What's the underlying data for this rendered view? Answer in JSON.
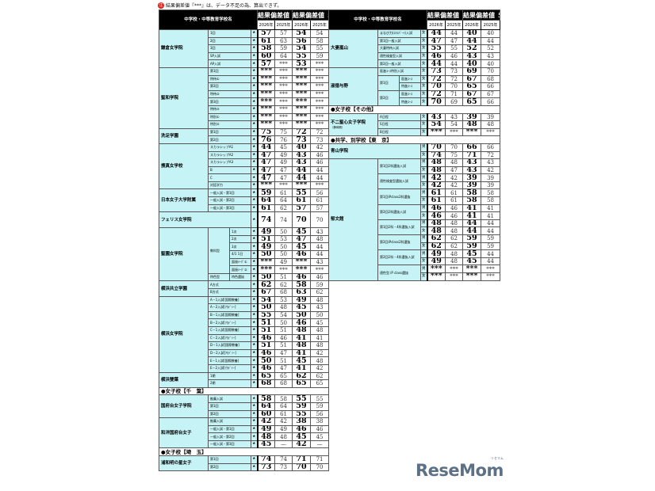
{
  "note": {
    "mark": "注",
    "text": "結果偏差値『***』は、データ不足の為、算出できず。"
  },
  "header": {
    "school_col": "中学校・中等教育学校名",
    "col80": "結果偏差値 ８０％",
    "col50": "結果偏差値 ５０％",
    "years": [
      "2026年",
      "2025年",
      "2026年",
      "2025年"
    ]
  },
  "left": [
    {
      "name": "鎌倉女学院",
      "rows": [
        {
          "sub": [
            "1回"
          ],
          "g": "★",
          "v": [
            "57",
            "57",
            "54",
            "54"
          ]
        },
        {
          "sub": [
            "2回"
          ],
          "g": "★",
          "v": [
            "61",
            "63",
            "56",
            "58"
          ]
        },
        {
          "sub": [
            "3回"
          ],
          "g": "★",
          "v": [
            "58",
            "59",
            "54",
            "55"
          ]
        },
        {
          "sub": [
            "SP入試"
          ],
          "g": "★",
          "v": [
            "60",
            "64",
            "55",
            "59"
          ]
        },
        {
          "sub": [
            "AP入試"
          ],
          "g": "★",
          "v": [
            "57",
            "***",
            "53",
            "***"
          ]
        }
      ]
    },
    {
      "name": "聖和学院",
      "rows": [
        {
          "sub": [
            "第1回"
          ],
          "g": "★",
          "v": [
            "***",
            "***",
            "***",
            "***"
          ]
        },
        {
          "sub": [
            "特待①"
          ],
          "g": "★",
          "v": [
            "***",
            "***",
            "***",
            "***"
          ]
        },
        {
          "sub": [
            "第2回"
          ],
          "g": "★",
          "v": [
            "***",
            "***",
            "***",
            "***"
          ]
        },
        {
          "sub": [
            "特待②"
          ],
          "g": "★",
          "v": [
            "***",
            "***",
            "***",
            "***"
          ]
        },
        {
          "sub": [
            "第3回"
          ],
          "g": "★",
          "v": [
            "***",
            "***",
            "***",
            "***"
          ]
        },
        {
          "sub": [
            "特待③"
          ],
          "g": "★",
          "v": [
            "***",
            "***",
            "***",
            "***"
          ]
        },
        {
          "sub": [
            "特別①"
          ],
          "g": "★",
          "v": [
            "***",
            "***",
            "***",
            "***"
          ]
        },
        {
          "sub": [
            "特別②"
          ],
          "g": "★",
          "v": [
            "***",
            "***",
            "***",
            "***"
          ]
        }
      ]
    },
    {
      "name": "洗足学園",
      "rows": [
        {
          "sub": [
            "第1回"
          ],
          "g": "★",
          "v": [
            "75",
            "75",
            "72",
            "72"
          ]
        },
        {
          "sub": [
            "第2回"
          ],
          "g": "★",
          "v": [
            "76",
            "76",
            "73",
            "73"
          ]
        }
      ]
    },
    {
      "name": "捜真女学校",
      "rows": [
        {
          "sub": [
            "スカラシップA1"
          ],
          "g": "★",
          "v": [
            "44",
            "45",
            "40",
            "42"
          ]
        },
        {
          "sub": [
            "スカラシップA2"
          ],
          "g": "★",
          "v": [
            "47",
            "49",
            "43",
            "46"
          ]
        },
        {
          "sub": [
            "スカラシップA3"
          ],
          "g": "★",
          "v": [
            "47",
            "49",
            "43",
            "46"
          ]
        },
        {
          "sub": [
            "B"
          ],
          "g": "★",
          "v": [
            "47",
            "47",
            "44",
            "44"
          ]
        },
        {
          "sub": [
            "C"
          ],
          "g": "★",
          "v": [
            "47",
            "47",
            "44",
            "44"
          ]
        },
        {
          "sub": [
            "対話学力"
          ],
          "g": "★",
          "v": [
            "***",
            "***",
            "***",
            "***"
          ]
        }
      ]
    },
    {
      "name": "日本女子大学附属",
      "rows": [
        {
          "sub": [
            "一般入試・第1回"
          ],
          "g": "★",
          "v": [
            "59",
            "61",
            "55",
            "56"
          ]
        },
        {
          "sub": [
            "一般入試・第2回"
          ],
          "g": "★",
          "v": [
            "64",
            "64",
            "61",
            "61"
          ]
        },
        {
          "sub": [
            "一般入試・第3回"
          ],
          "g": "★",
          "v": [
            "61",
            "62",
            "57",
            "57"
          ]
        }
      ]
    },
    {
      "name": "フェリス女学院",
      "tall": true,
      "rows": [
        {
          "sub": [],
          "g": "★",
          "v": [
            "74",
            "74",
            "70",
            "70"
          ]
        }
      ]
    },
    {
      "name": "聖園女学院",
      "rows": [
        {
          "sub": [
            "教科型",
            "1次"
          ],
          "g": "★",
          "v": [
            "49",
            "50",
            "45",
            "43"
          ]
        },
        {
          "sub": [
            "教科型",
            "2次"
          ],
          "g": "★",
          "v": [
            "51",
            "53",
            "47",
            "48"
          ]
        },
        {
          "sub": [
            "教科型",
            "3次"
          ],
          "g": "★",
          "v": [
            "49",
            "50",
            "45",
            "44"
          ]
        },
        {
          "sub": [
            "教科型",
            "4/1 1日"
          ],
          "g": "★",
          "v": [
            "50",
            "50",
            "46",
            "44"
          ]
        },
        {
          "sub": [
            "教科型",
            "面接ﾒｰｸﾞ①"
          ],
          "g": "★",
          "v": [
            "***",
            "49",
            "***",
            "43"
          ]
        },
        {
          "sub": [
            "教科型",
            "面接ﾒｰｸﾞ②"
          ],
          "g": "★",
          "v": [
            "***",
            "***",
            "***",
            "***"
          ]
        },
        {
          "sub": [
            "特色型",
            "特色選抜"
          ],
          "g": "★",
          "v": [
            "50",
            "51",
            "46",
            "46"
          ]
        }
      ]
    },
    {
      "name": "横浜共立学園",
      "rows": [
        {
          "sub": [
            "A方式"
          ],
          "g": "★",
          "v": [
            "62",
            "62",
            "58",
            "59"
          ]
        },
        {
          "sub": [
            "B方式"
          ],
          "g": "★",
          "v": [
            "67",
            "68",
            "63",
            "62"
          ]
        }
      ]
    },
    {
      "name": "横浜女学院",
      "rows": [
        {
          "sub": [
            "A－1入試[国際教養]"
          ],
          "g": "★",
          "v": [
            "54",
            "53",
            "49",
            "48"
          ]
        },
        {
          "sub": [
            "A－2入試[ｱｶﾃﾞﾐｰ]"
          ],
          "g": "★",
          "v": [
            "50",
            "48",
            "45",
            "43"
          ]
        },
        {
          "sub": [
            "B－1入試[国際教養]"
          ],
          "g": "★",
          "v": [
            "55",
            "54",
            "50",
            "50"
          ]
        },
        {
          "sub": [
            "B－2入試[ｱｶﾃﾞﾐｰ]"
          ],
          "g": "★",
          "v": [
            "51",
            "50",
            "46",
            "45"
          ]
        },
        {
          "sub": [
            "C－1入試[国際教養]"
          ],
          "g": "★",
          "v": [
            "51",
            "51",
            "48",
            "48"
          ]
        },
        {
          "sub": [
            "C－2入試[ｱｶﾃﾞﾐｰ]"
          ],
          "g": "★",
          "v": [
            "46",
            "46",
            "41",
            "41"
          ]
        },
        {
          "sub": [
            "D－1入試[国際教養]"
          ],
          "g": "★",
          "v": [
            "51",
            "51",
            "48",
            "48"
          ]
        },
        {
          "sub": [
            "D－2入試[ｱｶﾃﾞﾐｰ]"
          ],
          "g": "★",
          "v": [
            "46",
            "47",
            "41",
            "42"
          ]
        },
        {
          "sub": [
            "E－1入試[国際教養]"
          ],
          "g": "★",
          "v": [
            "50",
            "51",
            "45",
            "48"
          ]
        },
        {
          "sub": [
            "E－2入試[ｱｶﾃﾞﾐｰ]"
          ],
          "g": "★",
          "v": [
            "46",
            "47",
            "41",
            "42"
          ]
        }
      ]
    },
    {
      "name": "横浜雙葉",
      "rows": [
        {
          "sub": [
            "1期"
          ],
          "g": "★",
          "v": [
            "65",
            "65",
            "62",
            "62"
          ]
        },
        {
          "sub": [
            "2期"
          ],
          "g": "★",
          "v": [
            "68",
            "68",
            "65",
            "65"
          ]
        }
      ]
    },
    {
      "section": "●女子校【千　葉】"
    },
    {
      "name": "国府台女子学院",
      "rows": [
        {
          "sub": [
            "推薦入試"
          ],
          "g": "★",
          "v": [
            "58",
            "58",
            "55",
            "55"
          ]
        },
        {
          "sub": [
            "第1回"
          ],
          "g": "★",
          "v": [
            "64",
            "64",
            "59",
            "59"
          ]
        },
        {
          "sub": [
            "第2回"
          ],
          "g": "★",
          "v": [
            "60",
            "61",
            "55",
            "56"
          ]
        }
      ]
    },
    {
      "name": "和洋国府台女子",
      "rows": [
        {
          "sub": [
            "推薦入試"
          ],
          "g": "★",
          "v": [
            "42",
            "42",
            "38",
            "38"
          ]
        },
        {
          "sub": [
            "一般入試・第1回"
          ],
          "g": "★",
          "v": [
            "49",
            "49",
            "46",
            "46"
          ]
        },
        {
          "sub": [
            "一般入試・第2回"
          ],
          "g": "★",
          "v": [
            "48",
            "48",
            "45",
            "45"
          ]
        },
        {
          "sub": [
            "一般入試・第3回"
          ],
          "g": "★",
          "v": [
            "45",
            "—",
            "42",
            "—"
          ]
        }
      ]
    },
    {
      "section": "●女子校【埼　玉】"
    },
    {
      "name": "浦和明の星女子",
      "rows": [
        {
          "sub": [
            "第1回"
          ],
          "g": "★",
          "v": [
            "74",
            "74",
            "71",
            "71"
          ]
        },
        {
          "sub": [
            "第2回"
          ],
          "g": "★",
          "v": [
            "73",
            "73",
            "70",
            "70"
          ]
        }
      ]
    }
  ],
  "right": [
    {
      "name": "大妻嵐山",
      "rows": [
        {
          "sub": [
            "まなび力(ｴｷｽﾊﾟｰﾄ)入試"
          ],
          "g": "女",
          "v": [
            "44",
            "44",
            "40",
            "40"
          ]
        },
        {
          "sub": [
            "第1回一般入試"
          ],
          "g": "女",
          "v": [
            "47",
            "47",
            "44",
            "44"
          ]
        },
        {
          "sub": [
            "大妻特待入試"
          ],
          "g": "女",
          "v": [
            "55",
            "55",
            "52",
            "52"
          ]
        },
        {
          "sub": [
            "適性検査型入試"
          ],
          "g": "女",
          "v": [
            "46",
            "46",
            "43",
            "43"
          ]
        },
        {
          "sub": [
            "第2回一般入試"
          ],
          "g": "女",
          "v": [
            "44",
            "44",
            "40",
            "40"
          ]
        }
      ]
    },
    {
      "name": "淑徳与野",
      "rows": [
        {
          "sub": [
            "医進ｺｰｽ特別入試"
          ],
          "g": "女",
          "v": [
            "73",
            "73",
            "69",
            "70"
          ]
        },
        {
          "sub": [
            "第1回",
            "医進ｺｰｽ"
          ],
          "g": "女",
          "v": [
            "72",
            "72",
            "67",
            "68"
          ]
        },
        {
          "sub": [
            "第1回",
            "特進ｺｰｽ"
          ],
          "g": "女",
          "v": [
            "70",
            "70",
            "65",
            "66"
          ]
        },
        {
          "sub": [
            "第2回",
            "医進ｺｰｽ"
          ],
          "g": "女",
          "v": [
            "72",
            "71",
            "67",
            "67"
          ]
        },
        {
          "sub": [
            "第2回",
            "特進ｺｰｽ"
          ],
          "g": "女",
          "v": [
            "70",
            "69",
            "65",
            "66"
          ]
        }
      ]
    },
    {
      "section": "●女子校【その他】"
    },
    {
      "name": "不二聖心女子学院",
      "note": "（静岡県）",
      "rows": [
        {
          "sub": [
            "A日程"
          ],
          "g": "女",
          "v": [
            "43",
            "43",
            "39",
            "39"
          ]
        },
        {
          "sub": [
            "S日程"
          ],
          "g": "女",
          "v": [
            "54",
            "54",
            "48",
            "48"
          ]
        },
        {
          "sub": [
            "B日程"
          ],
          "g": "女",
          "v": [
            "***",
            "***",
            "***",
            "***"
          ]
        }
      ]
    },
    {
      "section": "●共学、別学校【東　京】"
    },
    {
      "name": "青山学院",
      "rows": [
        {
          "sub": [],
          "g": "男",
          "v": [
            "70",
            "70",
            "66",
            "66"
          ]
        },
        {
          "sub": [],
          "g": "女",
          "v": [
            "74",
            "75",
            "71",
            "72"
          ]
        }
      ]
    },
    {
      "name": "郁文館",
      "rows": [
        {
          "sub": [
            "第1回2科選抜入試"
          ],
          "g": "男",
          "v": [
            "48",
            "48",
            "43",
            "43"
          ]
        },
        {
          "sub": [
            "第1回2科選抜入試"
          ],
          "g": "女",
          "v": [
            "48",
            "47",
            "43",
            "42"
          ]
        },
        {
          "sub": [
            "適性検査型選抜入試"
          ],
          "g": "男",
          "v": [
            "42",
            "42",
            "39",
            "39"
          ]
        },
        {
          "sub": [
            "適性検査型選抜入試"
          ],
          "g": "女",
          "v": [
            "42",
            "42",
            "39",
            "39"
          ]
        },
        {
          "sub": [
            "第1回iPclass2科選抜"
          ],
          "g": "男",
          "v": [
            "61",
            "61",
            "58",
            "58"
          ]
        },
        {
          "sub": [
            "第1回iPclass2科選抜"
          ],
          "g": "女",
          "v": [
            "61",
            "61",
            "58",
            "58"
          ]
        },
        {
          "sub": [
            "第2回2科選抜入試"
          ],
          "g": "男",
          "v": [
            "46",
            "46",
            "41",
            "41"
          ]
        },
        {
          "sub": [
            "第2回2科選抜入試"
          ],
          "g": "女",
          "v": [
            "46",
            "46",
            "41",
            "41"
          ]
        },
        {
          "sub": [
            "第1回2科・4科選抜入試"
          ],
          "g": "男",
          "v": [
            "48",
            "48",
            "44",
            "44"
          ]
        },
        {
          "sub": [
            "第1回2科・4科選抜入試"
          ],
          "g": "女",
          "v": [
            "48",
            "48",
            "44",
            "44"
          ]
        },
        {
          "sub": [
            "第2回iPclass2科選抜"
          ],
          "g": "男",
          "v": [
            "62",
            "62",
            "59",
            "59"
          ]
        },
        {
          "sub": [
            "第2回iPclass2科選抜"
          ],
          "g": "女",
          "v": [
            "62",
            "62",
            "59",
            "59"
          ]
        },
        {
          "sub": [
            "第2回2科・4科選抜入試"
          ],
          "g": "男",
          "v": [
            "49",
            "48",
            "45",
            "44"
          ]
        },
        {
          "sub": [
            "第2回2科・4科選抜入試"
          ],
          "g": "女",
          "v": [
            "49",
            "48",
            "45",
            "44"
          ]
        },
        {
          "sub": [
            "適性型 iP class選抜"
          ],
          "g": "男",
          "v": [
            "***",
            "***",
            "***",
            "***"
          ]
        },
        {
          "sub": [
            "適性型 iP class選抜"
          ],
          "g": "女",
          "v": [
            "***",
            "***",
            "***",
            "***"
          ]
        }
      ]
    }
  ],
  "logo": {
    "text": "ReseMom",
    "sub": "リセマム"
  }
}
